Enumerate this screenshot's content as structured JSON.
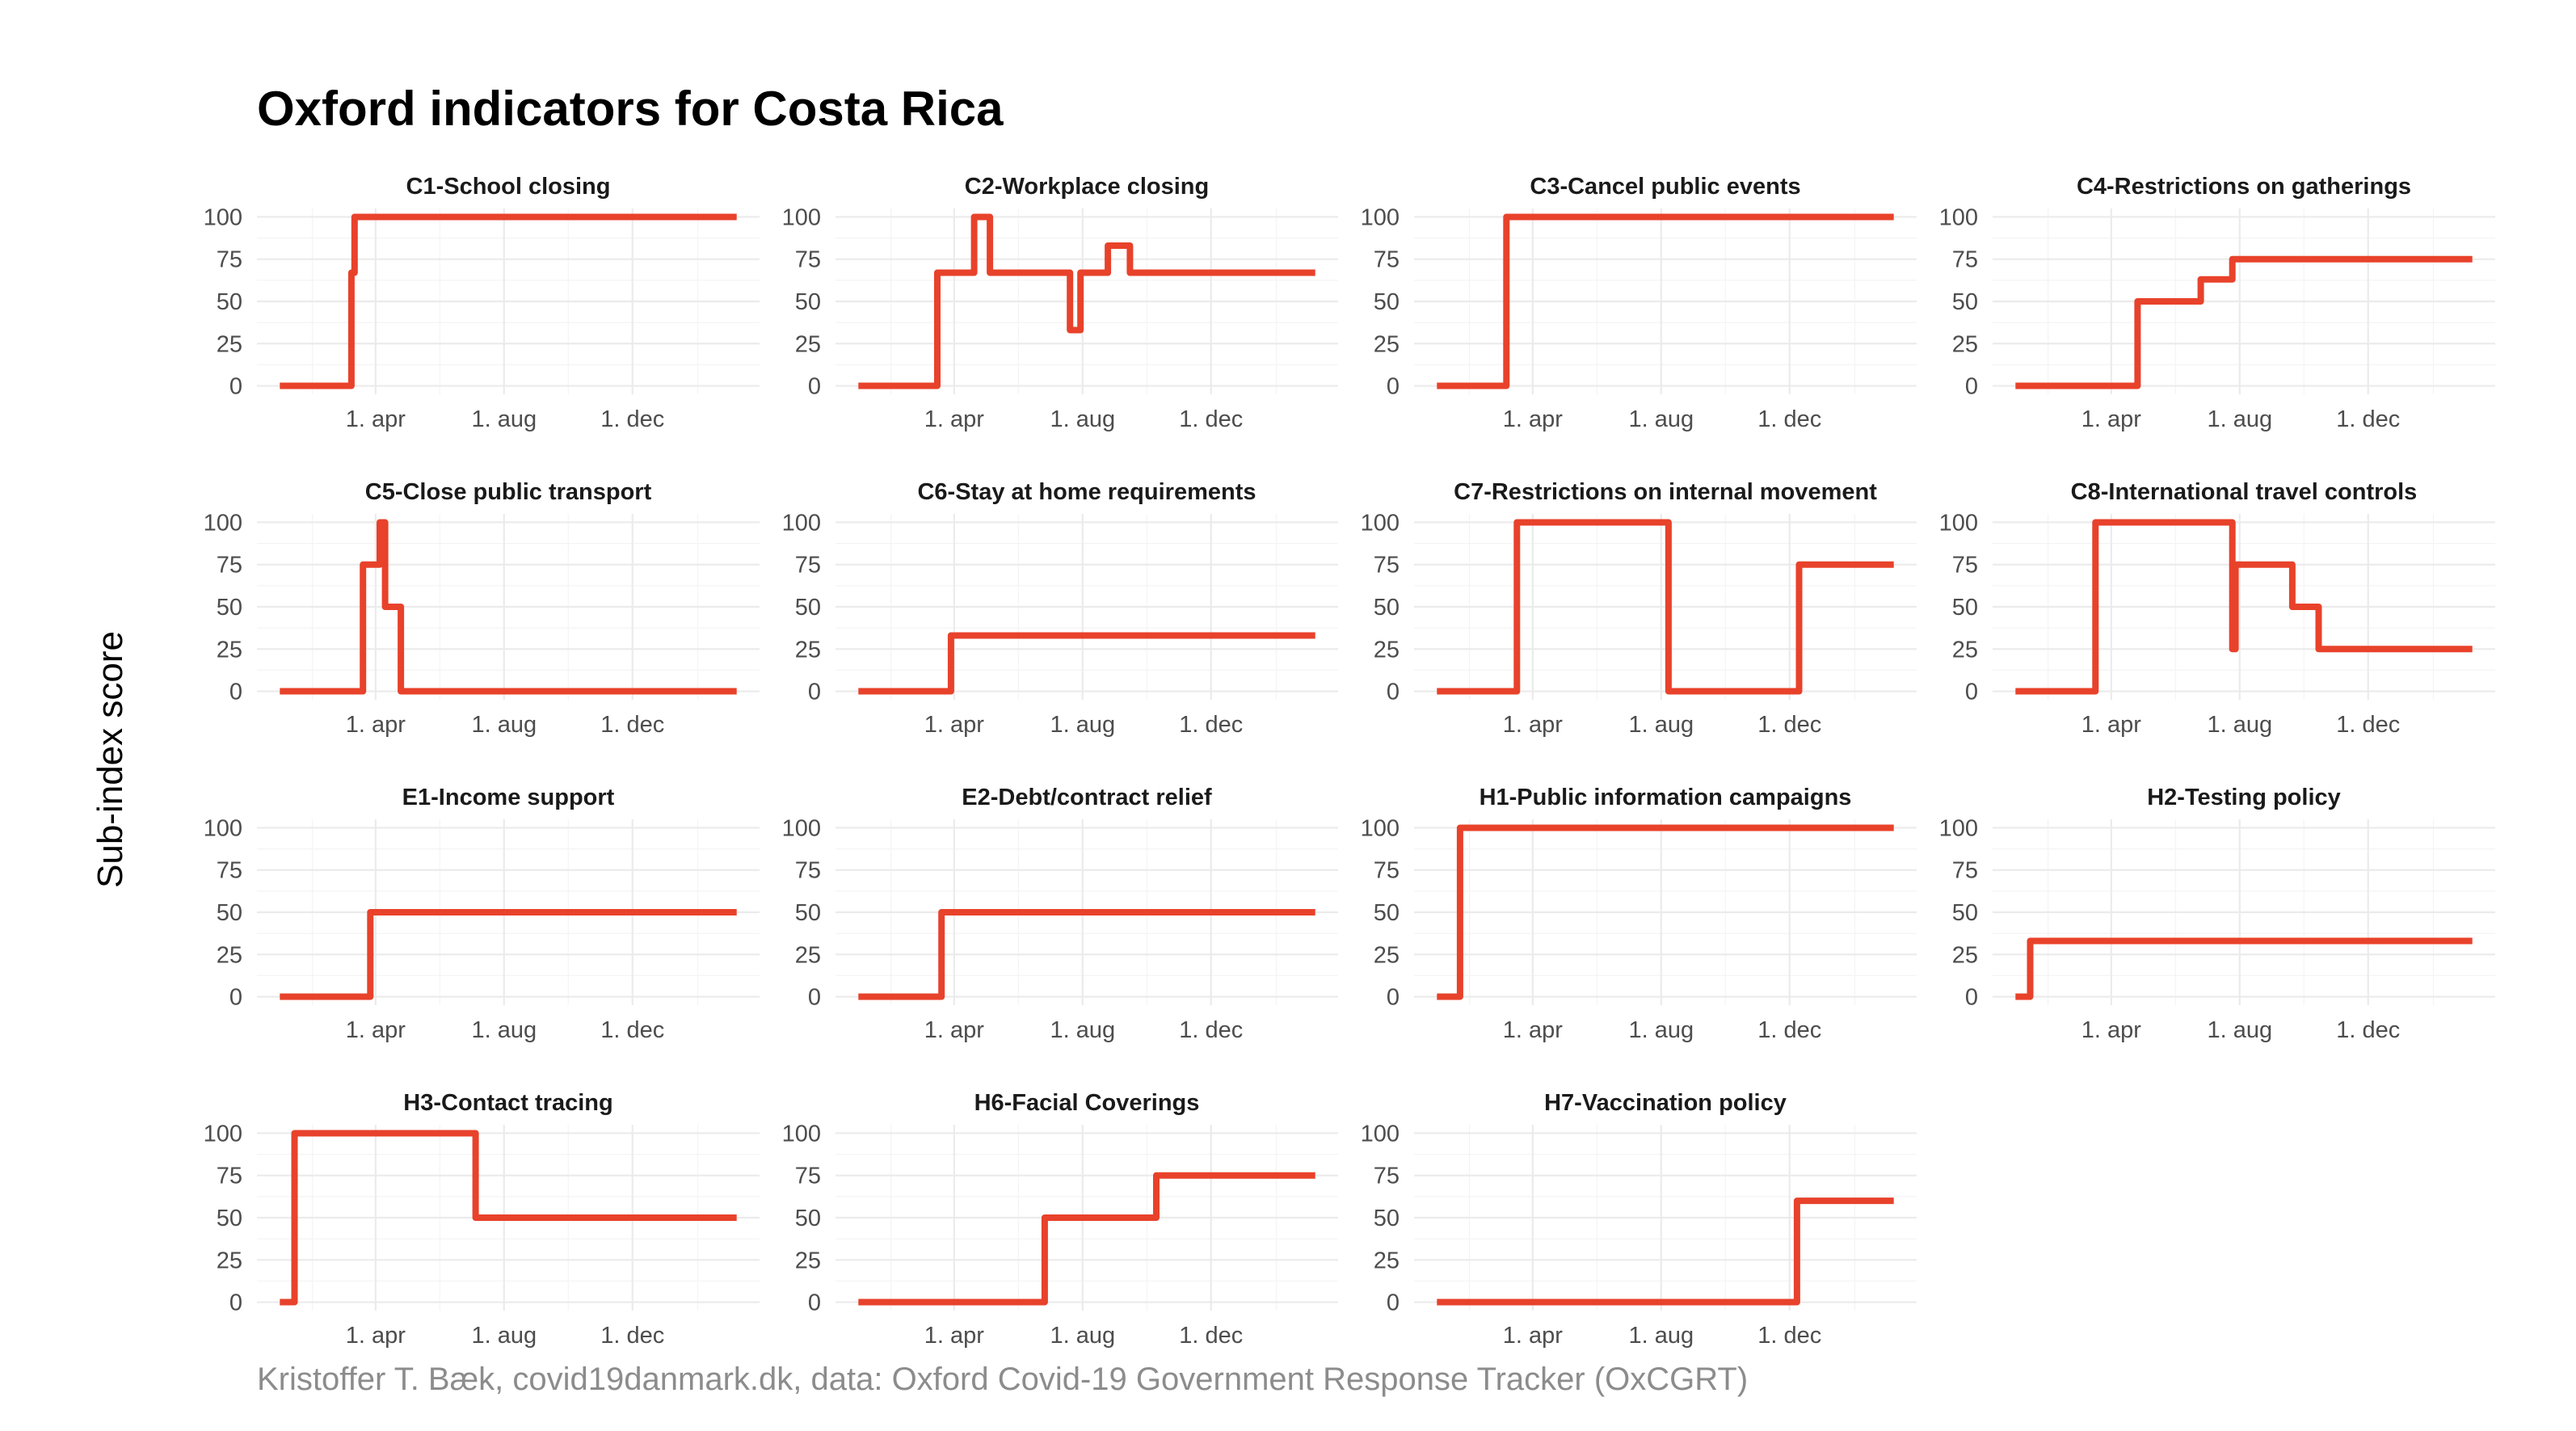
{
  "title": "Oxford indicators for Costa Rica",
  "ylabel": "Sub-index score",
  "caption": "Kristoffer T. Bæk, covid19danmark.dk, data: Oxford Covid-19 Government Response Tracker (OxCGRT)",
  "series_color": "#e8422b",
  "chart_data": [
    {
      "type": "line",
      "title": "C1-School closing",
      "xlabel": "",
      "ylabel": "",
      "ylim": [
        0,
        100
      ],
      "yticks": [
        "0",
        "25",
        "50",
        "75",
        "100"
      ],
      "xticks": [
        "1. apr",
        "1. aug",
        "1. dec"
      ],
      "points": [
        [
          "2020-01-01",
          0
        ],
        [
          "2020-03-09",
          0
        ],
        [
          "2020-03-09",
          67
        ],
        [
          "2020-03-12",
          67
        ],
        [
          "2020-03-12",
          100
        ],
        [
          "2021-03-10",
          100
        ]
      ]
    },
    {
      "type": "line",
      "title": "C2-Workplace closing",
      "xlabel": "",
      "ylabel": "",
      "ylim": [
        0,
        100
      ],
      "yticks": [
        "0",
        "25",
        "50",
        "75",
        "100"
      ],
      "xticks": [
        "1. apr",
        "1. aug",
        "1. dec"
      ],
      "points": [
        [
          "2020-01-01",
          0
        ],
        [
          "2020-03-16",
          0
        ],
        [
          "2020-03-16",
          67
        ],
        [
          "2020-04-20",
          67
        ],
        [
          "2020-04-20",
          100
        ],
        [
          "2020-05-05",
          100
        ],
        [
          "2020-05-05",
          67
        ],
        [
          "2020-07-20",
          67
        ],
        [
          "2020-07-20",
          33
        ],
        [
          "2020-07-30",
          33
        ],
        [
          "2020-07-30",
          67
        ],
        [
          "2020-08-25",
          67
        ],
        [
          "2020-08-25",
          83
        ],
        [
          "2020-09-15",
          83
        ],
        [
          "2020-09-15",
          67
        ],
        [
          "2021-03-10",
          67
        ]
      ]
    },
    {
      "type": "line",
      "title": "C3-Cancel public events",
      "xlabel": "",
      "ylabel": "",
      "ylim": [
        0,
        100
      ],
      "yticks": [
        "0",
        "25",
        "50",
        "75",
        "100"
      ],
      "xticks": [
        "1. apr",
        "1. aug",
        "1. dec"
      ],
      "points": [
        [
          "2020-01-01",
          0
        ],
        [
          "2020-03-07",
          0
        ],
        [
          "2020-03-07",
          100
        ],
        [
          "2021-03-10",
          100
        ]
      ]
    },
    {
      "type": "line",
      "title": "C4-Restrictions on gatherings",
      "xlabel": "",
      "ylabel": "",
      "ylim": [
        0,
        100
      ],
      "yticks": [
        "0",
        "25",
        "50",
        "75",
        "100"
      ],
      "xticks": [
        "1. apr",
        "1. aug",
        "1. dec"
      ],
      "points": [
        [
          "2020-01-01",
          0
        ],
        [
          "2020-04-26",
          0
        ],
        [
          "2020-04-26",
          50
        ],
        [
          "2020-06-25",
          50
        ],
        [
          "2020-06-25",
          63
        ],
        [
          "2020-07-25",
          63
        ],
        [
          "2020-07-25",
          75
        ],
        [
          "2021-03-10",
          75
        ]
      ]
    },
    {
      "type": "line",
      "title": "C5-Close public transport",
      "xlabel": "",
      "ylabel": "",
      "ylim": [
        0,
        100
      ],
      "yticks": [
        "0",
        "25",
        "50",
        "75",
        "100"
      ],
      "xticks": [
        "1. apr",
        "1. aug",
        "1. dec"
      ],
      "points": [
        [
          "2020-01-01",
          0
        ],
        [
          "2020-03-20",
          0
        ],
        [
          "2020-03-20",
          75
        ],
        [
          "2020-04-05",
          75
        ],
        [
          "2020-04-05",
          100
        ],
        [
          "2020-04-10",
          100
        ],
        [
          "2020-04-10",
          50
        ],
        [
          "2020-04-25",
          50
        ],
        [
          "2020-04-25",
          0
        ],
        [
          "2021-03-10",
          0
        ]
      ]
    },
    {
      "type": "line",
      "title": "C6-Stay at home requirements",
      "xlabel": "",
      "ylabel": "",
      "ylim": [
        0,
        100
      ],
      "yticks": [
        "0",
        "25",
        "50",
        "75",
        "100"
      ],
      "xticks": [
        "1. apr",
        "1. aug",
        "1. dec"
      ],
      "points": [
        [
          "2020-01-01",
          0
        ],
        [
          "2020-03-29",
          0
        ],
        [
          "2020-03-29",
          33
        ],
        [
          "2021-03-10",
          33
        ]
      ]
    },
    {
      "type": "line",
      "title": "C7-Restrictions on internal movement",
      "xlabel": "",
      "ylabel": "",
      "ylim": [
        0,
        100
      ],
      "yticks": [
        "0",
        "25",
        "50",
        "75",
        "100"
      ],
      "xticks": [
        "1. apr",
        "1. aug",
        "1. dec"
      ],
      "points": [
        [
          "2020-01-01",
          0
        ],
        [
          "2020-03-17",
          0
        ],
        [
          "2020-03-17",
          100
        ],
        [
          "2020-08-08",
          100
        ],
        [
          "2020-08-08",
          0
        ],
        [
          "2020-12-10",
          0
        ],
        [
          "2020-12-10",
          75
        ],
        [
          "2021-03-10",
          75
        ]
      ]
    },
    {
      "type": "line",
      "title": "C8-International travel controls",
      "xlabel": "",
      "ylabel": "",
      "ylim": [
        0,
        100
      ],
      "yticks": [
        "0",
        "25",
        "50",
        "75",
        "100"
      ],
      "xticks": [
        "1. apr",
        "1. aug",
        "1. dec"
      ],
      "points": [
        [
          "2020-01-01",
          0
        ],
        [
          "2020-03-17",
          0
        ],
        [
          "2020-03-17",
          100
        ],
        [
          "2020-07-25",
          100
        ],
        [
          "2020-07-25",
          25
        ],
        [
          "2020-07-28",
          25
        ],
        [
          "2020-07-28",
          75
        ],
        [
          "2020-09-20",
          75
        ],
        [
          "2020-09-20",
          50
        ],
        [
          "2020-10-15",
          50
        ],
        [
          "2020-10-15",
          25
        ],
        [
          "2021-03-10",
          25
        ]
      ]
    },
    {
      "type": "line",
      "title": "E1-Income support",
      "xlabel": "",
      "ylabel": "",
      "ylim": [
        0,
        100
      ],
      "yticks": [
        "0",
        "25",
        "50",
        "75",
        "100"
      ],
      "xticks": [
        "1. apr",
        "1. aug",
        "1. dec"
      ],
      "points": [
        [
          "2020-01-01",
          0
        ],
        [
          "2020-03-27",
          0
        ],
        [
          "2020-03-27",
          50
        ],
        [
          "2021-03-10",
          50
        ]
      ]
    },
    {
      "type": "line",
      "title": "E2-Debt/contract relief",
      "xlabel": "",
      "ylabel": "",
      "ylim": [
        0,
        100
      ],
      "yticks": [
        "0",
        "25",
        "50",
        "75",
        "100"
      ],
      "xticks": [
        "1. apr",
        "1. aug",
        "1. dec"
      ],
      "points": [
        [
          "2020-01-01",
          0
        ],
        [
          "2020-03-20",
          0
        ],
        [
          "2020-03-20",
          50
        ],
        [
          "2021-03-10",
          50
        ]
      ]
    },
    {
      "type": "line",
      "title": "H1-Public information campaigns",
      "xlabel": "",
      "ylabel": "",
      "ylim": [
        0,
        100
      ],
      "yticks": [
        "0",
        "25",
        "50",
        "75",
        "100"
      ],
      "xticks": [
        "1. apr",
        "1. aug",
        "1. dec"
      ],
      "points": [
        [
          "2020-01-01",
          0
        ],
        [
          "2020-01-23",
          0
        ],
        [
          "2020-01-23",
          100
        ],
        [
          "2021-03-10",
          100
        ]
      ]
    },
    {
      "type": "line",
      "title": "H2-Testing policy",
      "xlabel": "",
      "ylabel": "",
      "ylim": [
        0,
        100
      ],
      "yticks": [
        "0",
        "25",
        "50",
        "75",
        "100"
      ],
      "xticks": [
        "1. apr",
        "1. aug",
        "1. dec"
      ],
      "points": [
        [
          "2020-01-01",
          0
        ],
        [
          "2020-01-15",
          0
        ],
        [
          "2020-01-15",
          33
        ],
        [
          "2021-03-10",
          33
        ]
      ]
    },
    {
      "type": "line",
      "title": "H3-Contact tracing",
      "xlabel": "",
      "ylabel": "",
      "ylim": [
        0,
        100
      ],
      "yticks": [
        "0",
        "25",
        "50",
        "75",
        "100"
      ],
      "xticks": [
        "1. apr",
        "1. aug",
        "1. dec"
      ],
      "points": [
        [
          "2020-01-01",
          0
        ],
        [
          "2020-01-15",
          0
        ],
        [
          "2020-01-15",
          100
        ],
        [
          "2020-07-05",
          100
        ],
        [
          "2020-07-05",
          50
        ],
        [
          "2021-03-10",
          50
        ]
      ]
    },
    {
      "type": "line",
      "title": "H6-Facial Coverings",
      "xlabel": "",
      "ylabel": "",
      "ylim": [
        0,
        100
      ],
      "yticks": [
        "0",
        "25",
        "50",
        "75",
        "100"
      ],
      "xticks": [
        "1. apr",
        "1. aug",
        "1. dec"
      ],
      "points": [
        [
          "2020-01-01",
          0
        ],
        [
          "2020-06-26",
          0
        ],
        [
          "2020-06-26",
          50
        ],
        [
          "2020-10-10",
          50
        ],
        [
          "2020-10-10",
          75
        ],
        [
          "2021-03-10",
          75
        ]
      ]
    },
    {
      "type": "line",
      "title": "H7-Vaccination policy",
      "xlabel": "",
      "ylabel": "",
      "ylim": [
        0,
        100
      ],
      "yticks": [
        "0",
        "25",
        "50",
        "75",
        "100"
      ],
      "xticks": [
        "1. apr",
        "1. aug",
        "1. dec"
      ],
      "points": [
        [
          "2020-01-01",
          0
        ],
        [
          "2020-12-08",
          0
        ],
        [
          "2020-12-08",
          60
        ],
        [
          "2021-03-10",
          60
        ]
      ]
    }
  ]
}
